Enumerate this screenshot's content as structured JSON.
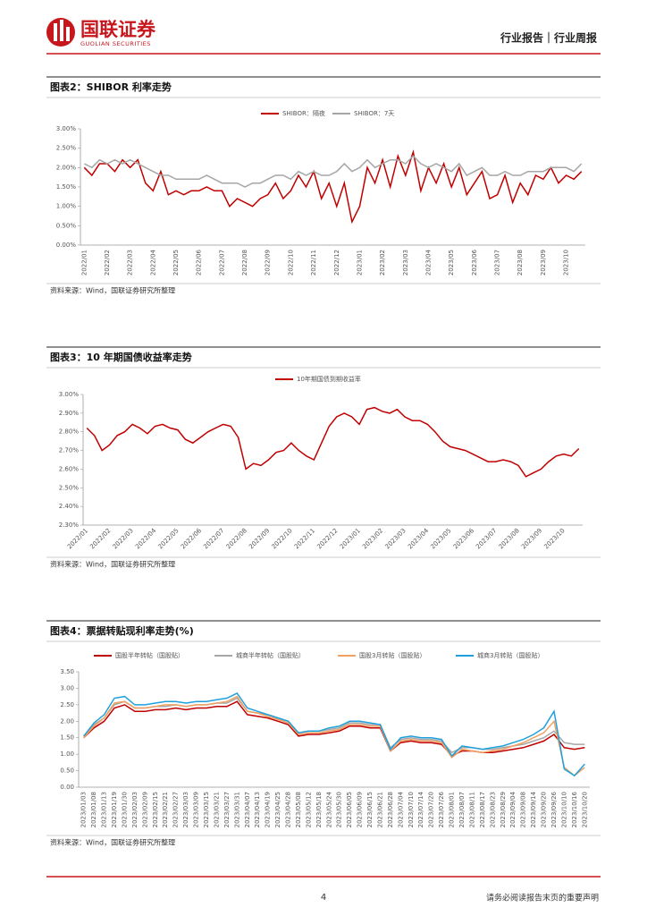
{
  "header": {
    "brand": "国联证券",
    "brand_en": "GUOLIAN SECURITIES",
    "report_type": "行业报告｜行业周报"
  },
  "footer": {
    "page": "4",
    "disclaimer": "请务必阅读报告末页的重要声明"
  },
  "chart_data": [
    {
      "type": "line",
      "title": "图表2：SHIBOR 利率走势",
      "source": "资料来源：Wind，国联证券研究所整理",
      "grid": false,
      "categories": [
        "2022/01",
        null,
        null,
        "2022/02",
        null,
        null,
        "2022/03",
        null,
        null,
        "2022/04",
        null,
        null,
        "2022/05",
        null,
        null,
        "2022/06",
        null,
        null,
        "2022/07",
        null,
        null,
        "2022/08",
        null,
        null,
        "2022/09",
        null,
        null,
        "2022/10",
        null,
        null,
        "2022/11",
        null,
        null,
        "2022/12",
        null,
        null,
        "2023/01",
        null,
        null,
        "2023/02",
        null,
        null,
        "2023/03",
        null,
        null,
        "2023/04",
        null,
        null,
        "2023/05",
        null,
        null,
        "2023/06",
        null,
        null,
        "2023/07",
        null,
        null,
        "2023/08",
        null,
        null,
        "2023/09",
        null,
        null,
        "2023/10",
        null,
        null
      ],
      "series": [
        {
          "name": "SHIBOR：隔夜",
          "color": "#c00000",
          "values": [
            2.0,
            1.8,
            2.1,
            2.1,
            1.9,
            2.2,
            2.0,
            2.2,
            1.6,
            1.4,
            1.9,
            1.3,
            1.4,
            1.3,
            1.4,
            1.4,
            1.5,
            1.4,
            1.4,
            1.0,
            1.2,
            1.1,
            1.0,
            1.2,
            1.3,
            1.6,
            1.2,
            1.4,
            1.8,
            1.5,
            1.9,
            1.2,
            1.6,
            1.0,
            1.6,
            0.6,
            1.0,
            2.0,
            1.6,
            2.2,
            1.5,
            2.3,
            1.8,
            2.4,
            1.4,
            2.0,
            1.6,
            2.1,
            1.5,
            2.0,
            1.3,
            1.6,
            1.9,
            1.2,
            1.3,
            1.8,
            1.1,
            1.6,
            1.3,
            1.8,
            1.7,
            2.0,
            1.6,
            1.8,
            1.7,
            1.9
          ]
        },
        {
          "name": "SHIBOR：7天",
          "color": "#a6a6a6",
          "values": [
            2.1,
            2.0,
            2.2,
            2.1,
            2.2,
            2.1,
            2.2,
            2.1,
            2.0,
            1.9,
            1.8,
            1.8,
            1.7,
            1.7,
            1.7,
            1.7,
            1.8,
            1.7,
            1.6,
            1.6,
            1.6,
            1.5,
            1.6,
            1.6,
            1.7,
            1.8,
            1.8,
            1.7,
            1.9,
            1.8,
            1.9,
            1.8,
            1.8,
            1.9,
            2.1,
            1.9,
            2.0,
            2.2,
            2.0,
            2.1,
            2.2,
            2.2,
            2.1,
            2.3,
            2.1,
            2.0,
            2.1,
            2.0,
            1.9,
            2.1,
            1.8,
            1.9,
            2.0,
            1.8,
            1.8,
            1.9,
            1.8,
            1.8,
            1.9,
            1.9,
            1.9,
            2.0,
            2.0,
            2.0,
            1.9,
            2.1
          ]
        }
      ],
      "ylim": [
        0,
        3
      ],
      "yticks": [
        {
          "value": 0,
          "label": "0.00%"
        },
        {
          "value": 0.5,
          "label": "0.50%"
        },
        {
          "value": 1,
          "label": "1.00%"
        },
        {
          "value": 1.5,
          "label": "1.50%"
        },
        {
          "value": 2,
          "label": "2.00%"
        },
        {
          "value": 2.5,
          "label": "2.50%"
        },
        {
          "value": 3,
          "label": "3.00%"
        }
      ]
    },
    {
      "type": "line",
      "title": "图表3：10 年期国债收益率走势",
      "source": "资料来源：Wind，国联证券研究所整理",
      "grid": false,
      "categories": [
        "2022/01",
        null,
        null,
        "2022/02",
        null,
        null,
        "2022/03",
        null,
        null,
        "2022/04",
        null,
        null,
        "2022/05",
        null,
        null,
        "2022/06",
        null,
        null,
        "2022/07",
        null,
        null,
        "2022/08",
        null,
        null,
        "2022/09",
        null,
        null,
        "2022/10",
        null,
        null,
        "2022/11",
        null,
        null,
        "2022/12",
        null,
        null,
        "2023/01",
        null,
        null,
        "2023/02",
        null,
        null,
        "2023/03",
        null,
        null,
        "2023/04",
        null,
        null,
        "2023/05",
        null,
        null,
        "2023/06",
        null,
        null,
        "2023/07",
        null,
        null,
        "2023/08",
        null,
        null,
        "2023/09",
        null,
        null,
        "2023/10",
        null,
        null
      ],
      "series": [
        {
          "name": "10年期国债到期收益率",
          "color": "#c00000",
          "values": [
            2.82,
            2.78,
            2.7,
            2.73,
            2.78,
            2.8,
            2.84,
            2.82,
            2.79,
            2.83,
            2.84,
            2.82,
            2.81,
            2.76,
            2.74,
            2.77,
            2.8,
            2.82,
            2.84,
            2.83,
            2.77,
            2.6,
            2.63,
            2.62,
            2.65,
            2.69,
            2.7,
            2.74,
            2.7,
            2.67,
            2.65,
            2.74,
            2.83,
            2.88,
            2.9,
            2.88,
            2.84,
            2.92,
            2.93,
            2.91,
            2.9,
            2.92,
            2.88,
            2.86,
            2.86,
            2.84,
            2.8,
            2.75,
            2.72,
            2.71,
            2.7,
            2.68,
            2.66,
            2.64,
            2.64,
            2.65,
            2.64,
            2.62,
            2.56,
            2.58,
            2.6,
            2.64,
            2.67,
            2.68,
            2.67,
            2.71
          ]
        }
      ],
      "ylim": [
        2.3,
        3.0
      ],
      "yticks": [
        {
          "value": 2.3,
          "label": "2.30%"
        },
        {
          "value": 2.4,
          "label": "2.40%"
        },
        {
          "value": 2.5,
          "label": "2.50%"
        },
        {
          "value": 2.6,
          "label": "2.60%"
        },
        {
          "value": 2.7,
          "label": "2.70%"
        },
        {
          "value": 2.8,
          "label": "2.80%"
        },
        {
          "value": 2.9,
          "label": "2.90%"
        },
        {
          "value": 3.0,
          "label": "3.00%"
        }
      ]
    },
    {
      "type": "line",
      "title": "图表4：票据转贴现利率走势(%)",
      "source": "资料来源：Wind，国联证券研究所整理",
      "grid": false,
      "categories": [
        "2023/01/03",
        "2023/01/08",
        "2023/01/13",
        "2023/01/19",
        "2023/01/30",
        "2023/02/03",
        "2023/02/09",
        "2023/02/15",
        "2023/02/21",
        "2023/02/27",
        "2023/03/03",
        "2023/03/09",
        "2023/03/15",
        "2023/03/21",
        "2023/03/27",
        "2023/03/31",
        "2023/04/07",
        "2023/04/13",
        "2023/04/19",
        "2023/04/25",
        "2023/04/28",
        "2023/05/08",
        "2023/05/12",
        "2023/05/18",
        "2023/05/24",
        "2023/05/30",
        "2023/06/05",
        "2023/06/09",
        "2023/06/15",
        "2023/06/21",
        "2023/06/28",
        "2023/07/04",
        "2023/07/10",
        "2023/07/14",
        "2023/07/20",
        "2023/07/26",
        "2023/08/01",
        "2023/08/07",
        "2023/08/11",
        "2023/08/17",
        "2023/08/23",
        "2023/08/29",
        "2023/09/04",
        "2023/09/08",
        "2023/09/14",
        "2023/09/20",
        "2023/09/26",
        "2023/10/10",
        "2023/10/16",
        "2023/10/20"
      ],
      "series": [
        {
          "name": "国股半年转帖（国股贴）",
          "color": "#c00000",
          "values": [
            1.5,
            1.8,
            2.0,
            2.4,
            2.5,
            2.3,
            2.3,
            2.35,
            2.35,
            2.4,
            2.35,
            2.4,
            2.4,
            2.45,
            2.45,
            2.6,
            2.2,
            2.15,
            2.1,
            2.0,
            1.9,
            1.55,
            1.6,
            1.6,
            1.65,
            1.7,
            1.85,
            1.85,
            1.8,
            1.8,
            1.1,
            1.35,
            1.4,
            1.35,
            1.35,
            1.3,
            0.95,
            1.1,
            1.1,
            1.05,
            1.05,
            1.1,
            1.15,
            1.2,
            1.3,
            1.4,
            1.6,
            1.2,
            1.15,
            1.2
          ]
        },
        {
          "name": "城商半年转帖（国股贴）",
          "color": "#a6a6a6",
          "values": [
            1.55,
            1.9,
            2.1,
            2.5,
            2.6,
            2.4,
            2.4,
            2.45,
            2.45,
            2.5,
            2.45,
            2.5,
            2.5,
            2.55,
            2.55,
            2.7,
            2.3,
            2.25,
            2.2,
            2.1,
            2.0,
            1.65,
            1.7,
            1.7,
            1.75,
            1.8,
            1.95,
            1.95,
            1.9,
            1.9,
            1.2,
            1.45,
            1.5,
            1.45,
            1.45,
            1.4,
            1.05,
            1.2,
            1.2,
            1.15,
            1.15,
            1.2,
            1.25,
            1.3,
            1.4,
            1.5,
            1.7,
            1.35,
            1.3,
            1.3
          ]
        },
        {
          "name": "国股3月转贴（国股贴）",
          "color": "#f0a060",
          "values": [
            1.5,
            1.85,
            2.1,
            2.55,
            2.6,
            2.4,
            2.4,
            2.45,
            2.5,
            2.5,
            2.45,
            2.5,
            2.5,
            2.55,
            2.6,
            2.75,
            2.3,
            2.25,
            2.15,
            2.05,
            1.95,
            1.6,
            1.65,
            1.65,
            1.7,
            1.75,
            1.9,
            1.9,
            1.85,
            1.85,
            1.1,
            1.4,
            1.45,
            1.4,
            1.4,
            1.35,
            0.9,
            1.15,
            1.1,
            1.05,
            1.1,
            1.15,
            1.25,
            1.35,
            1.5,
            1.65,
            2.0,
            0.6,
            0.35,
            0.6
          ]
        },
        {
          "name": "城商3月转贴（国股贴）",
          "color": "#1fa0dc",
          "values": [
            1.55,
            1.95,
            2.2,
            2.7,
            2.75,
            2.5,
            2.5,
            2.55,
            2.6,
            2.6,
            2.55,
            2.6,
            2.6,
            2.65,
            2.7,
            2.85,
            2.4,
            2.3,
            2.2,
            2.1,
            2.0,
            1.65,
            1.7,
            1.7,
            1.8,
            1.85,
            2.0,
            2.0,
            1.95,
            1.9,
            1.15,
            1.5,
            1.55,
            1.5,
            1.5,
            1.45,
            0.95,
            1.25,
            1.2,
            1.15,
            1.2,
            1.25,
            1.35,
            1.45,
            1.6,
            1.8,
            2.3,
            0.55,
            0.35,
            0.7
          ]
        }
      ],
      "ylim": [
        0,
        3.5
      ],
      "yticks": [
        {
          "value": 0,
          "label": "0.00"
        },
        {
          "value": 0.5,
          "label": "0.50"
        },
        {
          "value": 1,
          "label": "1.00"
        },
        {
          "value": 1.5,
          "label": "1.50"
        },
        {
          "value": 2,
          "label": "2.00"
        },
        {
          "value": 2.5,
          "label": "2.50"
        },
        {
          "value": 3,
          "label": "3.00"
        },
        {
          "value": 3.5,
          "label": "3.50"
        }
      ]
    }
  ]
}
